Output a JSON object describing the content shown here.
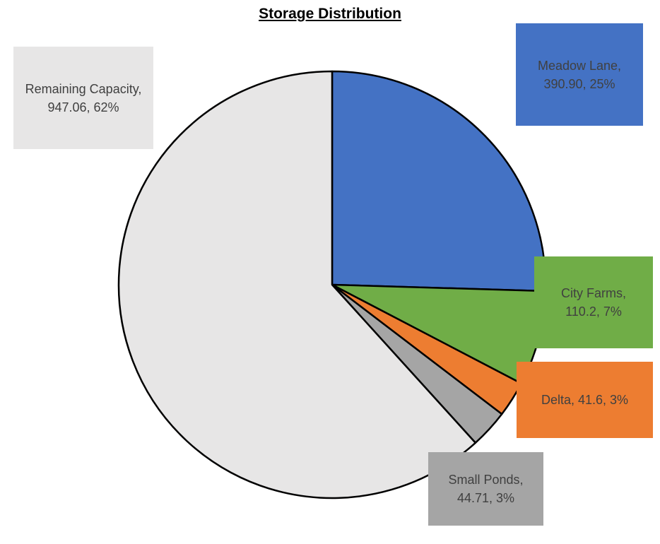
{
  "chart_data": {
    "type": "pie",
    "title": "Storage Distribution",
    "categories": [
      "Meadow Lane",
      "City Farms",
      "Delta",
      "Small Ponds",
      "Remaining Capacity"
    ],
    "values": [
      390.9,
      110.2,
      41.6,
      44.71,
      947.06
    ],
    "value_labels": [
      "Meadow Lane, 390.90, 25%",
      "City Farms, 110.2, 7%",
      "Delta, 41.6, 3%",
      "Small Ponds, 44.71, 3%",
      "Remaining Capacity, 947.06, 62%"
    ],
    "colors": [
      "#4472c4",
      "#70ad47",
      "#ed7d31",
      "#a5a5a5",
      "#e7e6e6"
    ]
  }
}
